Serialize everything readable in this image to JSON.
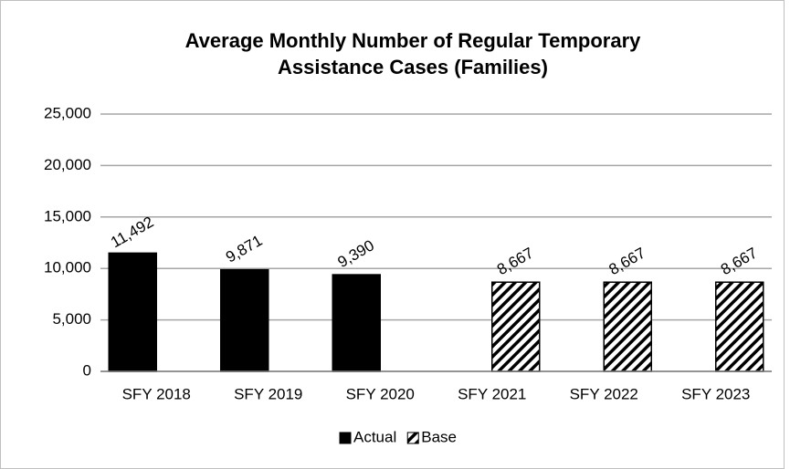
{
  "chart_data": {
    "type": "bar",
    "title": [
      "Average Monthly Number of Regular Temporary",
      "Assistance Cases (Families)"
    ],
    "categories": [
      "SFY 2018",
      "SFY 2019",
      "SFY 2020",
      "SFY 2021",
      "SFY 2022",
      "SFY 2023"
    ],
    "series": [
      {
        "name": "Actual",
        "color": "#000000",
        "hatch": false,
        "values": [
          11492,
          9871,
          9390,
          null,
          null,
          null
        ],
        "value_labels": [
          "11,492",
          "9,871",
          "9,390",
          null,
          null,
          null
        ]
      },
      {
        "name": "Base",
        "color": "#000000",
        "hatch": true,
        "values": [
          null,
          null,
          null,
          8667,
          8667,
          8667
        ],
        "value_labels": [
          null,
          null,
          null,
          "8,667",
          "8,667",
          "8,667"
        ]
      }
    ],
    "ylim": [
      0,
      25000
    ],
    "yticks": [
      0,
      {
        "value": 5000,
        "label": "5,000"
      },
      {
        "value": 10000,
        "label": "10,000"
      },
      {
        "value": 15000,
        "label": "15,000"
      },
      {
        "value": 20000,
        "label": "20,000"
      },
      {
        "value": 25000,
        "label": "25,000"
      }
    ],
    "grid": true,
    "legend": "bottom"
  }
}
